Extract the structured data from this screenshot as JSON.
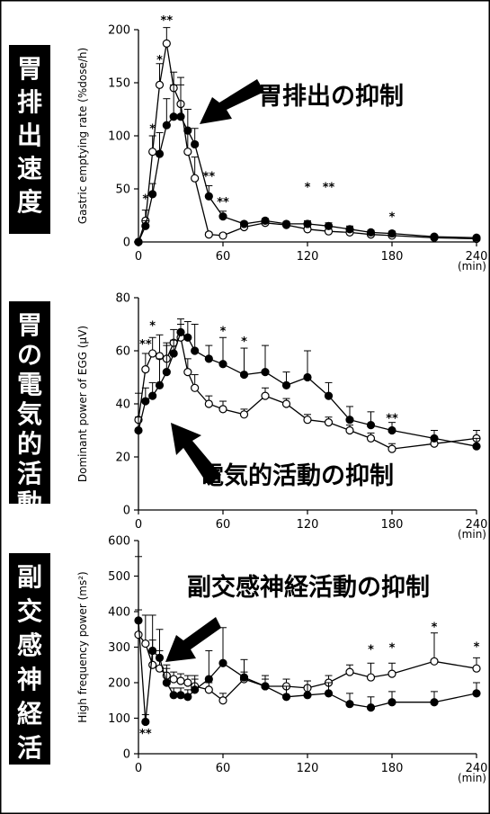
{
  "x_unit": "(min)",
  "x_ticks": [
    "0",
    "60",
    "120",
    "180",
    "240"
  ],
  "chart_data": [
    {
      "type": "line",
      "side_label": "胃排出速度",
      "annotation": "胃排出の抑制",
      "ylabel": "Gastric emptying rate (%dose/h)",
      "y_ticks": [
        "0",
        "50",
        "100",
        "150",
        "200"
      ],
      "xlim": [
        0,
        240
      ],
      "ylim": [
        0,
        200
      ],
      "series": [
        {
          "marker": "open",
          "x": [
            0,
            5,
            10,
            15,
            20,
            25,
            30,
            35,
            40,
            50,
            60,
            75,
            90,
            105,
            120,
            135,
            150,
            165,
            180,
            210,
            240
          ],
          "y": [
            0,
            20,
            85,
            148,
            187,
            145,
            130,
            85,
            60,
            7,
            6,
            14,
            18,
            16,
            12,
            10,
            9,
            7,
            6,
            4,
            3
          ],
          "err": [
            0,
            10,
            15,
            20,
            15,
            15,
            25,
            20,
            20,
            2,
            2,
            2,
            2,
            2,
            2,
            2,
            2,
            2,
            2,
            1,
            1
          ]
        },
        {
          "marker": "filled",
          "x": [
            0,
            5,
            10,
            15,
            20,
            25,
            30,
            35,
            40,
            50,
            60,
            75,
            90,
            105,
            120,
            135,
            150,
            165,
            180,
            210,
            240
          ],
          "y": [
            0,
            15,
            45,
            83,
            110,
            118,
            118,
            105,
            92,
            43,
            24,
            17,
            20,
            17,
            17,
            15,
            12,
            9,
            8,
            5,
            4
          ],
          "err": [
            0,
            5,
            10,
            20,
            25,
            30,
            30,
            20,
            15,
            10,
            5,
            2,
            2,
            2,
            3,
            3,
            3,
            2,
            2,
            1,
            1
          ]
        }
      ],
      "significance": [
        {
          "x": 5,
          "y": 37,
          "label": "*"
        },
        {
          "x": 10,
          "y": 103,
          "label": "*"
        },
        {
          "x": 15,
          "y": 168,
          "label": "*"
        },
        {
          "x": 20,
          "y": 205,
          "label": "**"
        },
        {
          "x": 50,
          "y": 58,
          "label": "**"
        },
        {
          "x": 60,
          "y": 34,
          "label": "**"
        },
        {
          "x": 120,
          "y": 48,
          "label": "*"
        },
        {
          "x": 135,
          "y": 48,
          "label": "**"
        },
        {
          "x": 180,
          "y": 20,
          "label": "*"
        }
      ]
    },
    {
      "type": "line",
      "side_label": "胃の電気的活動",
      "annotation": "電気的活動の抑制",
      "ylabel": "Dominant power of EGG (μV)",
      "y_ticks": [
        "0",
        "20",
        "40",
        "60",
        "80"
      ],
      "xlim": [
        0,
        240
      ],
      "ylim": [
        0,
        80
      ],
      "series": [
        {
          "marker": "open",
          "x": [
            0,
            5,
            10,
            15,
            20,
            25,
            30,
            35,
            40,
            50,
            60,
            75,
            90,
            105,
            120,
            135,
            150,
            165,
            180,
            210,
            240
          ],
          "y": [
            34,
            53,
            59,
            58,
            57,
            63,
            65,
            52,
            46,
            40,
            38,
            36,
            43,
            40,
            34,
            33,
            30,
            27,
            23,
            25,
            27
          ],
          "err": [
            10,
            6,
            6,
            8,
            6,
            5,
            5,
            5,
            5,
            3,
            3,
            2,
            3,
            2,
            2,
            2,
            2,
            2,
            2,
            2,
            3
          ]
        },
        {
          "marker": "filled",
          "x": [
            0,
            5,
            10,
            15,
            20,
            25,
            30,
            35,
            40,
            50,
            60,
            75,
            90,
            105,
            120,
            135,
            150,
            165,
            180,
            210,
            240
          ],
          "y": [
            30,
            41,
            43,
            47,
            52,
            59,
            67,
            65,
            60,
            57,
            55,
            51,
            52,
            47,
            50,
            43,
            34,
            32,
            30,
            27,
            24
          ],
          "err": [
            5,
            5,
            5,
            10,
            10,
            5,
            5,
            6,
            10,
            5,
            10,
            10,
            10,
            5,
            10,
            5,
            5,
            5,
            3,
            3,
            3
          ]
        }
      ],
      "significance": [
        {
          "x": 5,
          "y": 61,
          "label": "**"
        },
        {
          "x": 10,
          "y": 68,
          "label": "*"
        },
        {
          "x": 60,
          "y": 66,
          "label": "*"
        },
        {
          "x": 75,
          "y": 62,
          "label": "*"
        },
        {
          "x": 180,
          "y": 33,
          "label": "**"
        }
      ]
    },
    {
      "type": "line",
      "side_label": "副交感神経活動",
      "annotation": "副交感神経活動の抑制",
      "ylabel": "High frequency power (ms²)",
      "y_ticks": [
        "0",
        "100",
        "200",
        "300",
        "400",
        "500",
        "600"
      ],
      "xlim": [
        0,
        240
      ],
      "ylim": [
        0,
        600
      ],
      "series": [
        {
          "marker": "open",
          "x": [
            0,
            5,
            10,
            15,
            20,
            25,
            30,
            35,
            40,
            50,
            60,
            75,
            90,
            105,
            120,
            135,
            150,
            165,
            180,
            210,
            240
          ],
          "y": [
            335,
            310,
            250,
            240,
            220,
            210,
            205,
            200,
            190,
            180,
            150,
            210,
            190,
            190,
            185,
            200,
            230,
            215,
            225,
            260,
            240
          ],
          "err": [
            220,
            80,
            70,
            50,
            30,
            20,
            20,
            20,
            20,
            20,
            20,
            20,
            20,
            20,
            20,
            20,
            20,
            40,
            30,
            80,
            30
          ]
        },
        {
          "marker": "filled",
          "x": [
            0,
            5,
            10,
            15,
            20,
            25,
            30,
            35,
            40,
            50,
            60,
            75,
            90,
            105,
            120,
            135,
            150,
            165,
            180,
            210,
            240
          ],
          "y": [
            375,
            90,
            290,
            270,
            200,
            165,
            165,
            160,
            180,
            210,
            255,
            215,
            190,
            160,
            165,
            170,
            140,
            130,
            145,
            145,
            170
          ],
          "err": [
            30,
            20,
            100,
            80,
            40,
            20,
            20,
            20,
            40,
            80,
            100,
            50,
            30,
            30,
            40,
            30,
            30,
            30,
            30,
            30,
            30
          ]
        }
      ],
      "significance": [
        {
          "x": 5,
          "y": 45,
          "label": "**"
        },
        {
          "x": 165,
          "y": 282,
          "label": "*"
        },
        {
          "x": 180,
          "y": 287,
          "label": "*"
        },
        {
          "x": 210,
          "y": 345,
          "label": "*"
        },
        {
          "x": 240,
          "y": 290,
          "label": "*"
        }
      ]
    }
  ]
}
